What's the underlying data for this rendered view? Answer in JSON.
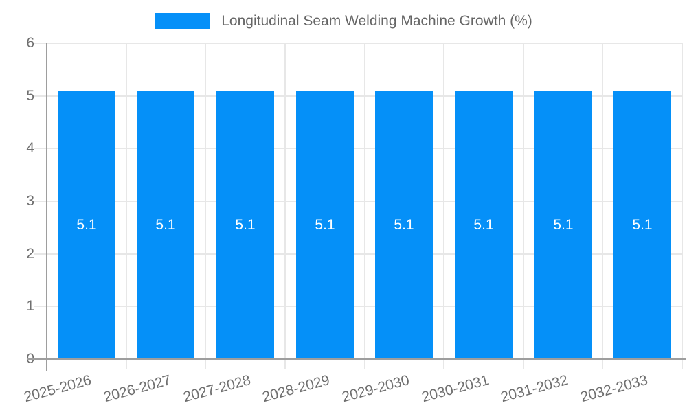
{
  "chart_data": {
    "type": "bar",
    "title": "",
    "xlabel": "",
    "ylabel": "",
    "categories": [
      "2025-2026",
      "2026-2027",
      "2027-2028",
      "2028-2029",
      "2029-2030",
      "2030-2031",
      "2031-2032",
      "2032-2033"
    ],
    "series": [
      {
        "name": "Longitudinal Seam Welding Machine Growth (%)",
        "values": [
          5.1,
          5.1,
          5.1,
          5.1,
          5.1,
          5.1,
          5.1,
          5.1
        ]
      }
    ],
    "bar_value_labels": [
      "5.1",
      "5.1",
      "5.1",
      "5.1",
      "5.1",
      "5.1",
      "5.1",
      "5.1"
    ],
    "ylim": [
      0,
      6
    ],
    "yticks": [
      0,
      1,
      2,
      3,
      4,
      5,
      6
    ],
    "grid": "on",
    "legend_position": "top",
    "colors": {
      "bar": "#0590f8",
      "bar_value_text": "#ffffff",
      "axis_line": "#9e9e9e",
      "grid_line": "#e7e7e7",
      "tick_text": "#6f6f6f",
      "legend_text": "#666666",
      "background": "#ffffff"
    }
  }
}
